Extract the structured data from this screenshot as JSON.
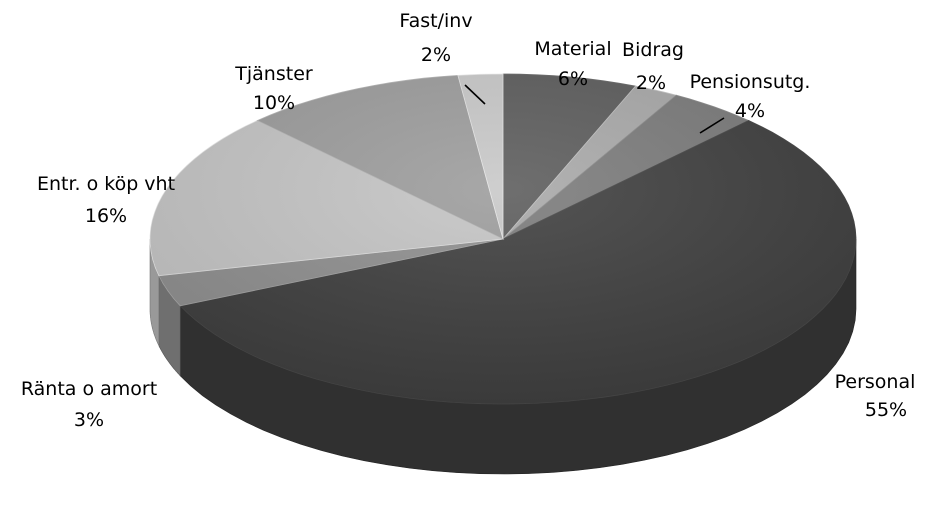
{
  "chart_data": {
    "type": "pie",
    "style": "3d",
    "categories": [
      "Material",
      "Bidrag",
      "Pensionsutg.",
      "Personal",
      "Ränta o amort",
      "Entr. o köp vht",
      "Tjänster",
      "Fast/inv"
    ],
    "values": [
      6,
      2,
      4,
      55,
      3,
      16,
      10,
      2
    ],
    "value_labels": [
      "6%",
      "2%",
      "4%",
      "55%",
      "3%",
      "16%",
      "10%",
      "2%"
    ],
    "colors": [
      "#5b5b5b",
      "#a8a8a8",
      "#7a7a7a",
      "#3d3d3d",
      "#8e8e8e",
      "#c4c4c4",
      "#9c9c9c",
      "#c8c8c8"
    ],
    "legend": "none",
    "start_angle": "12 o'clock, clockwise"
  }
}
